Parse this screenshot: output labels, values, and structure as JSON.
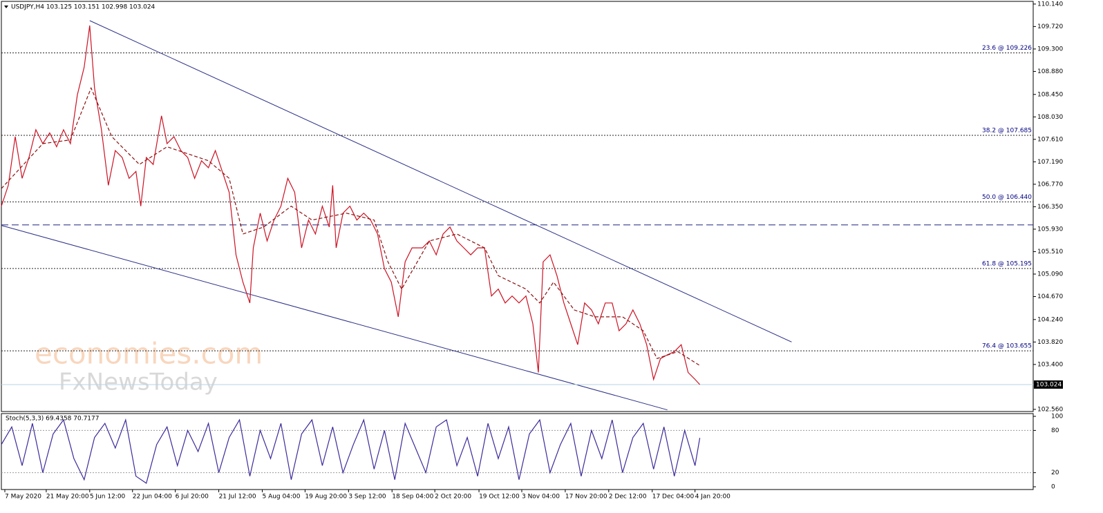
{
  "chart_data": [
    {
      "type": "price",
      "title": "USDJPY,H4  103.125 103.151 102.998 103.024",
      "xlim": [
        0,
        1495
      ],
      "ylim": [
        102.52,
        110.19
      ],
      "yticks": [
        {
          "value": 110.14,
          "label": "110.140"
        },
        {
          "value": 109.72,
          "label": "109.720"
        },
        {
          "value": 109.3,
          "label": "109.300"
        },
        {
          "value": 108.88,
          "label": "108.880"
        },
        {
          "value": 108.45,
          "label": "108.450"
        },
        {
          "value": 108.03,
          "label": "108.030"
        },
        {
          "value": 107.61,
          "label": "107.610"
        },
        {
          "value": 107.19,
          "label": "107.190"
        },
        {
          "value": 106.77,
          "label": "106.770"
        },
        {
          "value": 106.35,
          "label": "106.350"
        },
        {
          "value": 105.93,
          "label": "105.930"
        },
        {
          "value": 105.51,
          "label": "105.510"
        },
        {
          "value": 105.09,
          "label": "105.090"
        },
        {
          "value": 104.67,
          "label": "104.670"
        },
        {
          "value": 104.24,
          "label": "104.240"
        },
        {
          "value": 103.82,
          "label": "103.820"
        },
        {
          "value": 103.4,
          "label": "103.400"
        },
        {
          "value": 102.56,
          "label": "102.560"
        }
      ],
      "xticks": [
        {
          "value": 5,
          "label": "7 May 2020"
        },
        {
          "value": 65,
          "label": "21 May 20:00"
        },
        {
          "value": 128,
          "label": "5 Jun 12:00"
        },
        {
          "value": 190,
          "label": "22 Jun 04:00"
        },
        {
          "value": 252,
          "label": "6 Jul 20:00"
        },
        {
          "value": 315,
          "label": "21 Jul 12:00"
        },
        {
          "value": 378,
          "label": "5 Aug 04:00"
        },
        {
          "value": 440,
          "label": "19 Aug 20:00"
        },
        {
          "value": 503,
          "label": "3 Sep 12:00"
        },
        {
          "value": 566,
          "label": "18 Sep 04:00"
        },
        {
          "value": 628,
          "label": "2 Oct 20:00"
        },
        {
          "value": 692,
          "label": "19 Oct 12:00"
        },
        {
          "value": 754,
          "label": "3 Nov 04:00"
        },
        {
          "value": 817,
          "label": "17 Nov 20:00"
        },
        {
          "value": 880,
          "label": "2 Dec 12:00"
        },
        {
          "value": 943,
          "label": "17 Dec 04:00"
        },
        {
          "value": 1005,
          "label": "4 Jan 20:00"
        }
      ],
      "current_price": {
        "value": 103.024,
        "label": "103.024"
      },
      "fib_levels": [
        {
          "value": 109.226,
          "label": "23.6 @ 109.226"
        },
        {
          "value": 107.685,
          "label": "38.2 @ 107.685"
        },
        {
          "value": 106.44,
          "label": "50.0 @ 106.440"
        },
        {
          "value": 105.195,
          "label": "61.8 @ 105.195"
        },
        {
          "value": 103.655,
          "label": "76.4 @ 103.655"
        }
      ],
      "level_line": 106.01,
      "trendlines": [
        {
          "x": [
            128,
            1145
          ],
          "values": [
            109.83,
            103.82
          ],
          "color": "#2b2f86"
        },
        {
          "x": [
            0,
            965
          ],
          "values": [
            106.0,
            102.55
          ],
          "color": "#2b2f86"
        }
      ],
      "series": [
        {
          "color": "#cc1122",
          "x": [
            0,
            10,
            20,
            30,
            40,
            50,
            60,
            70,
            80,
            90,
            100,
            110,
            120,
            128,
            135,
            145,
            155,
            165,
            175,
            185,
            195,
            202,
            210,
            220,
            232,
            240,
            250,
            260,
            270,
            280,
            290,
            300,
            310,
            320,
            330,
            340,
            350,
            360,
            365,
            375,
            385,
            395,
            405,
            415,
            425,
            435,
            445,
            455,
            465,
            475,
            480,
            485,
            495,
            505,
            515,
            525,
            535,
            545,
            555,
            565,
            575,
            585,
            595,
            610,
            620,
            630,
            640,
            650,
            660,
            670,
            680,
            690,
            700,
            710,
            720,
            730,
            740,
            750,
            760,
            770,
            778,
            785,
            795,
            805,
            815,
            825,
            835,
            845,
            855,
            865,
            875,
            885,
            895,
            905,
            915,
            925,
            935,
            945,
            955,
            965,
            975,
            985,
            995,
            1005,
            1012
          ],
          "values": [
            106.36,
            106.75,
            107.66,
            106.88,
            107.27,
            107.79,
            107.53,
            107.73,
            107.47,
            107.79,
            107.53,
            108.44,
            108.96,
            109.74,
            108.57,
            107.79,
            106.75,
            107.4,
            107.27,
            106.88,
            107.01,
            106.36,
            107.27,
            107.14,
            108.05,
            107.53,
            107.66,
            107.4,
            107.27,
            106.88,
            107.21,
            107.08,
            107.4,
            107.01,
            106.62,
            105.45,
            104.94,
            104.55,
            105.58,
            106.23,
            105.71,
            106.1,
            106.36,
            106.88,
            106.62,
            105.58,
            106.1,
            105.84,
            106.36,
            105.97,
            106.75,
            105.58,
            106.23,
            106.36,
            106.1,
            106.23,
            106.1,
            105.84,
            105.19,
            104.94,
            104.29,
            105.32,
            105.58,
            105.58,
            105.71,
            105.45,
            105.84,
            105.97,
            105.71,
            105.58,
            105.45,
            105.58,
            105.58,
            104.68,
            104.81,
            104.55,
            104.68,
            104.55,
            104.68,
            104.16,
            103.25,
            105.32,
            105.45,
            105.06,
            104.55,
            104.16,
            103.77,
            104.55,
            104.42,
            104.16,
            104.55,
            104.55,
            104.03,
            104.16,
            104.42,
            104.16,
            103.77,
            103.12,
            103.51,
            103.58,
            103.64,
            103.77,
            103.25,
            103.12,
            103.024
          ]
        },
        {
          "color": "#8b1010",
          "dashed": true,
          "x": [
            0,
            60,
            100,
            130,
            160,
            200,
            240,
            300,
            330,
            350,
            380,
            420,
            450,
            500,
            540,
            560,
            580,
            620,
            660,
            700,
            720,
            760,
            780,
            800,
            830,
            860,
            900,
            930,
            950,
            980,
            1012
          ],
          "values": [
            106.69,
            107.53,
            107.6,
            108.57,
            107.66,
            107.14,
            107.47,
            107.21,
            106.88,
            105.84,
            105.97,
            106.36,
            106.1,
            106.23,
            106.1,
            105.32,
            104.81,
            105.71,
            105.84,
            105.58,
            105.06,
            104.81,
            104.55,
            104.94,
            104.42,
            104.29,
            104.29,
            104.03,
            103.51,
            103.64,
            103.38
          ]
        }
      ],
      "watermark": [
        "economies.com",
        "FxNewsToday"
      ]
    },
    {
      "type": "oscillator",
      "title": "Stoch(5,3,3) 69.4358 70.7177",
      "xlim": [
        0,
        1495
      ],
      "ylim": [
        0,
        100
      ],
      "yticks": [
        100,
        80,
        20,
        0
      ],
      "levels": [
        80,
        20
      ],
      "series": [
        {
          "color": "#3b2a9a",
          "x": [
            0,
            15,
            30,
            45,
            60,
            75,
            90,
            105,
            120,
            135,
            150,
            165,
            180,
            195,
            210,
            225,
            240,
            255,
            270,
            285,
            300,
            315,
            330,
            345,
            360,
            375,
            390,
            405,
            420,
            435,
            450,
            465,
            480,
            495,
            510,
            525,
            540,
            555,
            570,
            585,
            600,
            615,
            630,
            645,
            660,
            675,
            690,
            705,
            720,
            735,
            750,
            765,
            780,
            795,
            810,
            825,
            840,
            855,
            870,
            885,
            900,
            915,
            930,
            945,
            960,
            975,
            990,
            1005,
            1012
          ],
          "values": [
            60,
            85,
            30,
            90,
            20,
            75,
            95,
            40,
            10,
            70,
            90,
            55,
            95,
            15,
            5,
            60,
            85,
            30,
            80,
            50,
            90,
            20,
            70,
            95,
            15,
            80,
            40,
            90,
            10,
            75,
            95,
            30,
            85,
            20,
            60,
            95,
            25,
            80,
            10,
            90,
            55,
            20,
            85,
            95,
            30,
            70,
            15,
            90,
            40,
            85,
            10,
            75,
            95,
            20,
            60,
            90,
            15,
            80,
            40,
            95,
            20,
            70,
            90,
            25,
            85,
            15,
            80,
            30,
            69.4358
          ]
        }
      ]
    }
  ]
}
